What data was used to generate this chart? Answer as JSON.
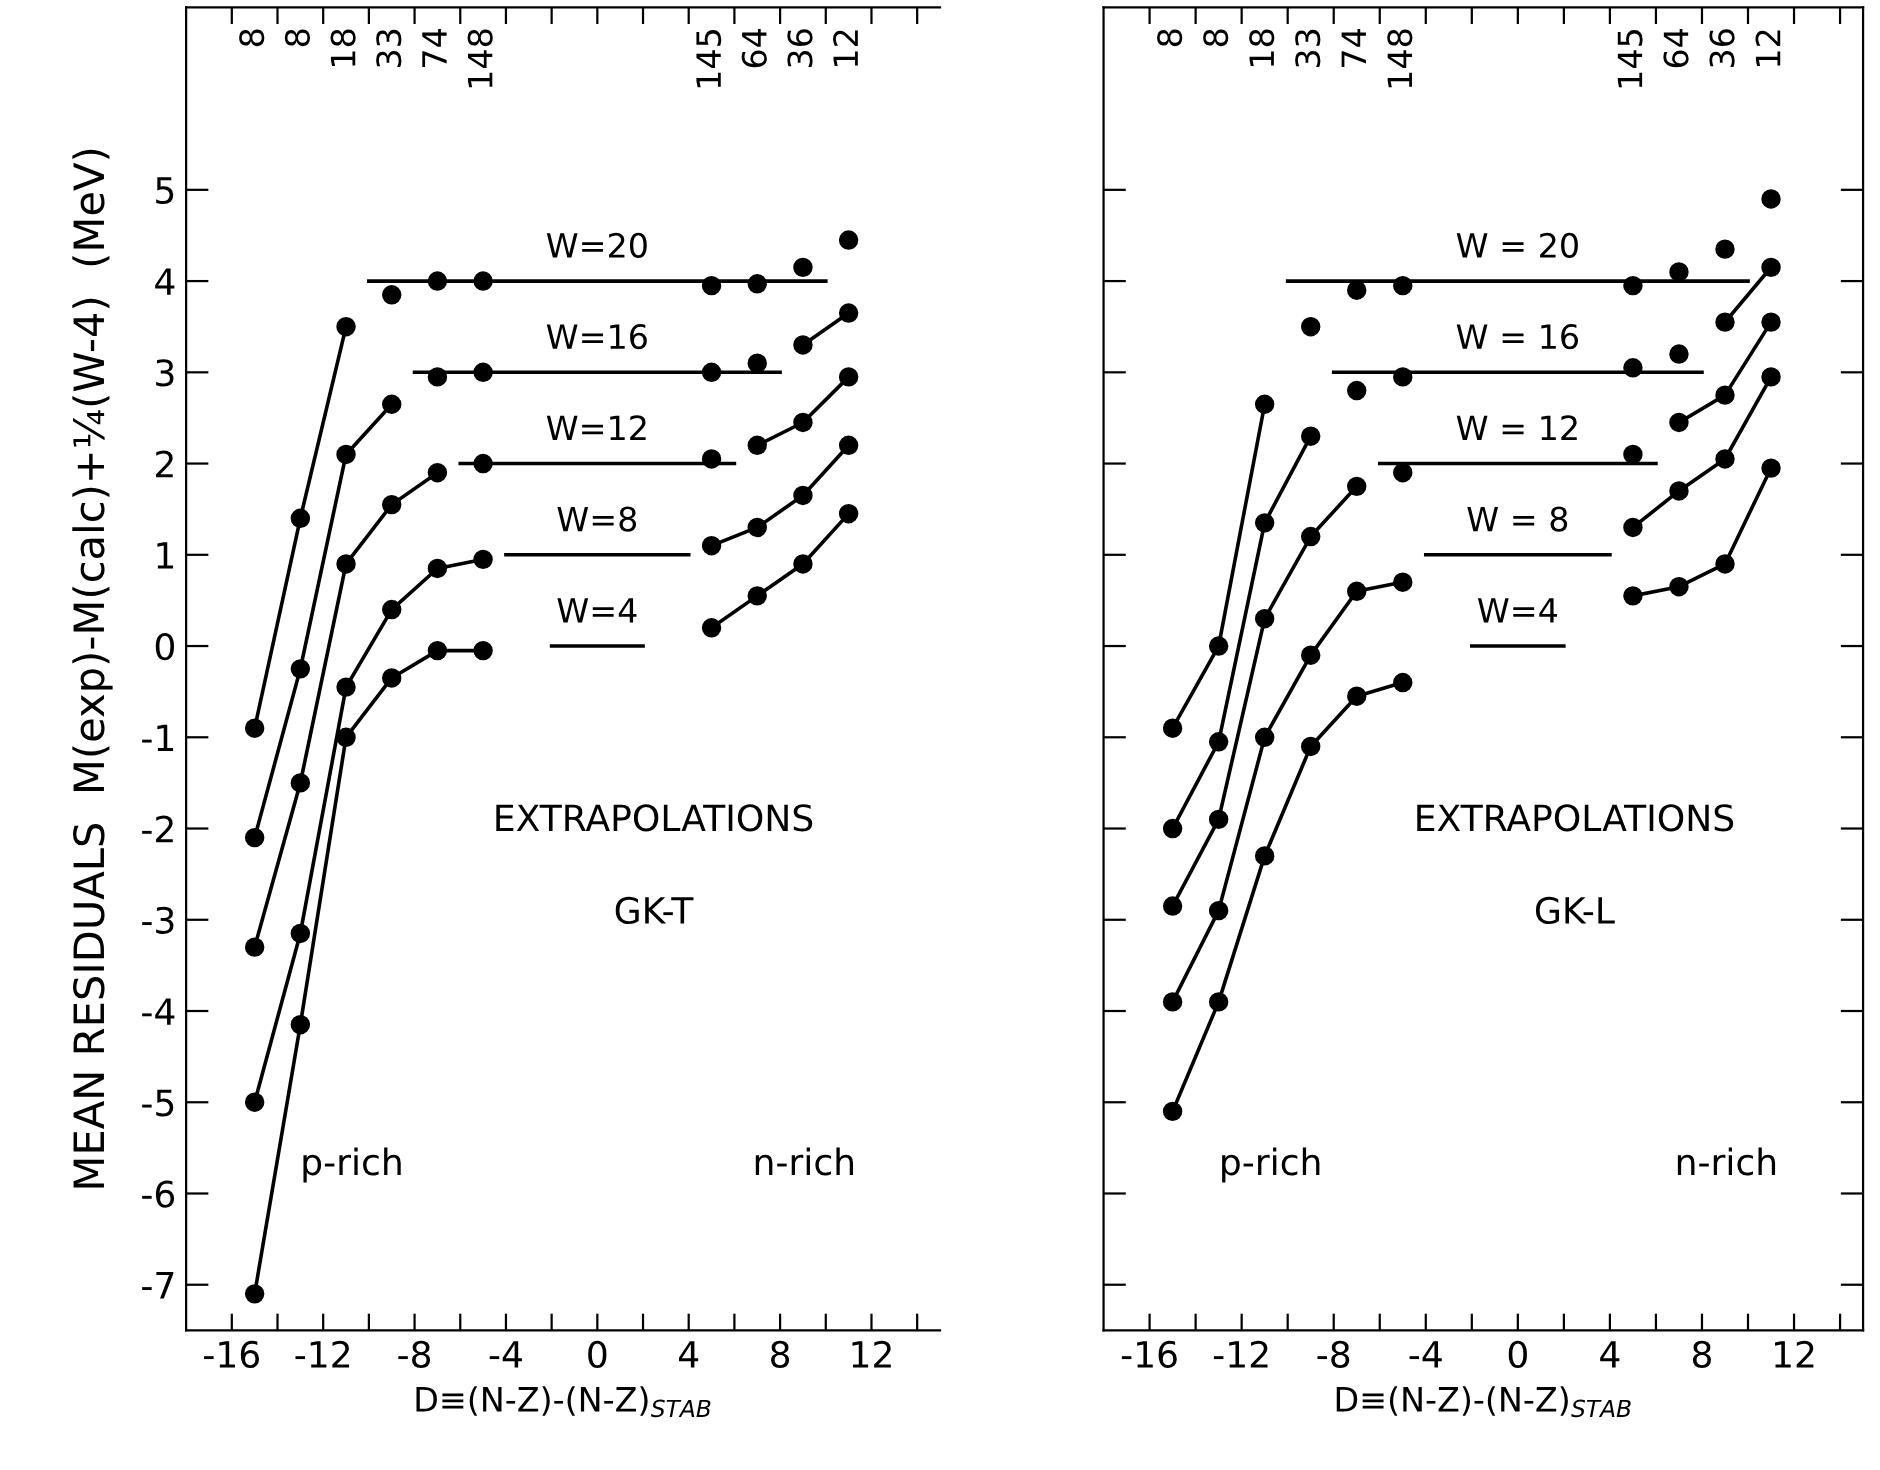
{
  "chart_data": [
    {
      "type": "line",
      "xlabel": "D≡(N-Z)-(N-Z)$_{STAB}$",
      "ylabel": "MEAN RESIDUALS  M(exp)-M(calc)+¼(W-4)  (MeV)",
      "xlim": [
        -18,
        15
      ],
      "ylim": [
        -7.5,
        7
      ],
      "xticks": [
        -16,
        {
          "value": -14,
          "label": null
        },
        -12,
        {
          "value": -10,
          "label": null
        },
        -8,
        {
          "value": -6,
          "label": null
        },
        -4,
        {
          "value": -2,
          "label": null
        },
        0,
        {
          "value": 2,
          "label": null
        },
        4,
        {
          "value": 6,
          "label": null
        },
        8,
        {
          "value": 10,
          "label": null
        },
        12,
        {
          "value": 14,
          "label": null
        }
      ],
      "yticks": [
        -7,
        -6,
        -5,
        -4,
        -3,
        -2,
        -1,
        0,
        1,
        2,
        3,
        4,
        5
      ],
      "annotations": [
        "EXTRAPOLATIONS",
        "GK-T",
        "p-rich",
        "n-rich",
        "8",
        "8",
        "18",
        "33",
        "74",
        "148",
        "145",
        "64",
        "36",
        "12"
      ],
      "series": [
        {
          "marker": "circle",
          "color": "#000000",
          "x": [
            -15,
            -13,
            -11
          ],
          "values": [
            -0.9,
            1.4,
            3.5
          ]
        },
        {
          "type": "scatter",
          "marker": "circle",
          "color": "#000000",
          "x": [
            -9,
            -7,
            -5,
            5,
            7,
            9,
            11
          ],
          "values": [
            3.85,
            4.0,
            4.0,
            3.95,
            3.97,
            4.15,
            4.45
          ]
        },
        {
          "marker": "circle",
          "color": "#000000",
          "x": [
            -15,
            -13,
            -11,
            -9
          ],
          "values": [
            -2.1,
            -0.25,
            2.1,
            2.65
          ]
        },
        {
          "type": "scatter",
          "marker": "circle",
          "color": "#000000",
          "x": [
            -7,
            -5,
            5,
            7
          ],
          "values": [
            2.95,
            3.0,
            3.0,
            3.1
          ]
        },
        {
          "marker": "circle",
          "color": "#000000",
          "x": [
            9,
            11
          ],
          "values": [
            3.3,
            3.65
          ]
        },
        {
          "marker": "circle",
          "color": "#000000",
          "x": [
            -15,
            -13,
            -11,
            -9,
            -7
          ],
          "values": [
            -3.3,
            -1.5,
            0.9,
            1.55,
            1.9
          ]
        },
        {
          "type": "scatter",
          "marker": "circle",
          "color": "#000000",
          "x": [
            -5,
            5
          ],
          "values": [
            2.0,
            2.05
          ]
        },
        {
          "marker": "circle",
          "color": "#000000",
          "x": [
            7,
            9,
            11
          ],
          "values": [
            2.2,
            2.45,
            2.95
          ]
        },
        {
          "marker": "circle",
          "color": "#000000",
          "x": [
            -15,
            -13,
            -11,
            -9,
            -7,
            -5
          ],
          "values": [
            -5.0,
            -3.15,
            -0.45,
            0.4,
            0.85,
            0.95
          ]
        },
        {
          "marker": "circle",
          "color": "#000000",
          "x": [
            5,
            7,
            9,
            11
          ],
          "values": [
            1.1,
            1.3,
            1.65,
            2.2
          ]
        },
        {
          "marker": "circle",
          "color": "#000000",
          "x": [
            -15,
            -13,
            -11,
            -9,
            -7,
            -5
          ],
          "values": [
            -7.1,
            -4.15,
            -1.0,
            -0.35,
            -0.05,
            -0.05
          ]
        },
        {
          "marker": "circle",
          "color": "#000000",
          "x": [
            5,
            7,
            9,
            11
          ],
          "values": [
            0.2,
            0.55,
            0.9,
            1.45
          ]
        },
        {
          "marker": "none",
          "color": "#000000",
          "name": "W=20",
          "x": [
            -10,
            10
          ],
          "values": [
            4,
            4
          ]
        },
        {
          "marker": "none",
          "color": "#000000",
          "name": "W=16",
          "x": [
            -8,
            8
          ],
          "values": [
            3,
            3
          ]
        },
        {
          "marker": "none",
          "color": "#000000",
          "name": "W=12",
          "x": [
            -6,
            6
          ],
          "values": [
            2,
            2
          ]
        },
        {
          "marker": "none",
          "color": "#000000",
          "name": "W=8",
          "x": [
            -4,
            4
          ],
          "values": [
            1,
            1
          ]
        },
        {
          "marker": "none",
          "color": "#000000",
          "name": "W=4",
          "x": [
            -2,
            2
          ],
          "values": [
            0,
            0
          ]
        }
      ]
    },
    {
      "type": "line",
      "xlabel": "D≡(N-Z)-(N-Z)$_{STAB}$",
      "tick_labels": "x",
      "xlim": [
        -18,
        15
      ],
      "ylim": [
        -7.5,
        7
      ],
      "xticks": [
        -16,
        {
          "value": -14,
          "label": null
        },
        -12,
        {
          "value": -10,
          "label": null
        },
        -8,
        {
          "value": -6,
          "label": null
        },
        -4,
        {
          "value": -2,
          "label": null
        },
        0,
        {
          "value": 2,
          "label": null
        },
        4,
        {
          "value": 6,
          "label": null
        },
        8,
        {
          "value": 10,
          "label": null
        },
        12,
        {
          "value": 14,
          "label": null
        }
      ],
      "yticks": [
        -7,
        -6,
        -5,
        -4,
        -3,
        -2,
        -1,
        0,
        1,
        2,
        3,
        4,
        5
      ],
      "annotations": [
        "EXTRAPOLATIONS",
        "GK-L",
        "p-rich",
        "n-rich",
        "8",
        "8",
        "18",
        "33",
        "74",
        "148",
        "145",
        "64",
        "36",
        "12"
      ],
      "series": [
        {
          "marker": "circle",
          "color": "#000000",
          "x": [
            -15,
            -13,
            -11
          ],
          "values": [
            -0.9,
            0.0,
            2.65
          ]
        },
        {
          "type": "scatter",
          "marker": "circle",
          "color": "#000000",
          "x": [
            -9,
            -7,
            -5,
            5,
            7,
            9,
            11
          ],
          "values": [
            3.5,
            3.9,
            3.95,
            3.95,
            4.1,
            4.35,
            4.9
          ]
        },
        {
          "marker": "circle",
          "color": "#000000",
          "x": [
            -15,
            -13,
            -11,
            -9
          ],
          "values": [
            -2.0,
            -1.05,
            1.35,
            2.3
          ]
        },
        {
          "type": "scatter",
          "marker": "circle",
          "color": "#000000",
          "x": [
            -7,
            -5,
            5,
            7
          ],
          "values": [
            2.8,
            2.95,
            3.05,
            3.2
          ]
        },
        {
          "marker": "circle",
          "color": "#000000",
          "x": [
            9,
            11
          ],
          "values": [
            3.55,
            4.15
          ]
        },
        {
          "marker": "circle",
          "color": "#000000",
          "x": [
            -15,
            -13,
            -11,
            -9,
            -7
          ],
          "values": [
            -2.85,
            -1.9,
            0.3,
            1.2,
            1.75
          ]
        },
        {
          "type": "scatter",
          "marker": "circle",
          "color": "#000000",
          "x": [
            -5,
            5
          ],
          "values": [
            1.9,
            2.1
          ]
        },
        {
          "marker": "circle",
          "color": "#000000",
          "x": [
            7,
            9,
            11
          ],
          "values": [
            2.45,
            2.75,
            3.55
          ]
        },
        {
          "marker": "circle",
          "color": "#000000",
          "x": [
            -15,
            -13,
            -11,
            -9,
            -7,
            -5
          ],
          "values": [
            -3.9,
            -2.9,
            -1.0,
            -0.1,
            0.6,
            0.7
          ]
        },
        {
          "marker": "circle",
          "color": "#000000",
          "x": [
            5,
            7,
            9,
            11
          ],
          "values": [
            1.3,
            1.7,
            2.05,
            2.95
          ]
        },
        {
          "marker": "circle",
          "color": "#000000",
          "x": [
            -15,
            -13,
            -11,
            -9,
            -7,
            -5
          ],
          "values": [
            -5.1,
            -3.9,
            -2.3,
            -1.1,
            -0.55,
            -0.4
          ]
        },
        {
          "marker": "circle",
          "color": "#000000",
          "x": [
            5,
            7,
            9,
            11
          ],
          "values": [
            0.55,
            0.65,
            0.9,
            1.95
          ]
        },
        {
          "marker": "none",
          "color": "#000000",
          "name": "W = 20",
          "x": [
            -10,
            10
          ],
          "values": [
            4,
            4
          ]
        },
        {
          "marker": "none",
          "color": "#000000",
          "name": "W = 16",
          "x": [
            -8,
            8
          ],
          "values": [
            3,
            3
          ]
        },
        {
          "marker": "none",
          "color": "#000000",
          "name": "W = 12",
          "x": [
            -6,
            6
          ],
          "values": [
            2,
            2
          ]
        },
        {
          "marker": "none",
          "color": "#000000",
          "name": "W = 8",
          "x": [
            -4,
            4
          ],
          "values": [
            1,
            1
          ]
        },
        {
          "marker": "none",
          "color": "#000000",
          "name": "W=4",
          "x": [
            -2,
            2
          ],
          "values": [
            0,
            0
          ]
        }
      ]
    }
  ]
}
